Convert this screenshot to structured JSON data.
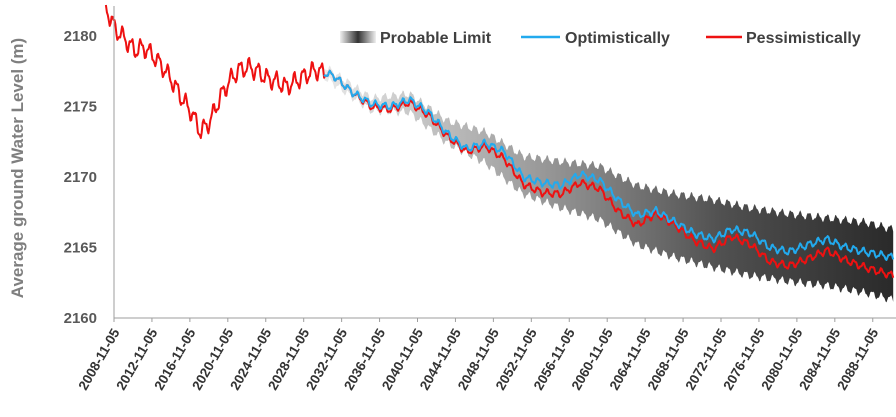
{
  "chart_data": {
    "type": "line",
    "ylabel": "Average ground Water Level (m)",
    "xlabel": "",
    "ylim": [
      2160,
      2182
    ],
    "y_ticks": [
      2160,
      2165,
      2170,
      2175,
      2180
    ],
    "x_ticks": [
      "2008-11-05",
      "2012-11-05",
      "2016-11-05",
      "2020-11-05",
      "2024-11-05",
      "2028-11-05",
      "2032-11-05",
      "2036-11-05",
      "2040-11-05",
      "2044-11-05",
      "2048-11-05",
      "2052-11-05",
      "2056-11-05",
      "2060-11-05",
      "2064-11-05",
      "2068-11-05",
      "2072-11-05",
      "2076-11-05",
      "2080-11-05",
      "2084-11-05",
      "2088-11-05"
    ],
    "grid": false,
    "legend_position": "top-right",
    "historical_end_year": 2031,
    "series": [
      {
        "name": "Probable Limit",
        "kind": "band",
        "color": "#404040",
        "x": [
          2031,
          2036,
          2040,
          2044,
          2048,
          2052,
          2056,
          2060,
          2064,
          2068,
          2072,
          2076,
          2080,
          2084,
          2088,
          2091
        ],
        "lower": [
          2177.1,
          2174.7,
          2174.6,
          2172.4,
          2171.0,
          2168.8,
          2167.8,
          2167.0,
          2165.2,
          2164.3,
          2163.6,
          2163.0,
          2162.6,
          2162.3,
          2161.8,
          2161.3
        ],
        "upper": [
          2177.9,
          2175.6,
          2175.9,
          2174.0,
          2173.2,
          2171.5,
          2171.1,
          2170.8,
          2169.4,
          2168.8,
          2168.4,
          2167.8,
          2167.4,
          2167.1,
          2166.8,
          2166.3
        ]
      },
      {
        "name": "Optimistically",
        "kind": "line",
        "color": "#22aaee",
        "x": [
          2031,
          2032,
          2034,
          2036,
          2038,
          2040,
          2042,
          2044,
          2046,
          2048,
          2050,
          2052,
          2054,
          2056,
          2058,
          2060,
          2062,
          2064,
          2066,
          2068,
          2070,
          2072,
          2074,
          2076,
          2078,
          2080,
          2082,
          2084,
          2086,
          2088,
          2091
        ],
        "values": [
          2177.4,
          2177.2,
          2176.0,
          2175.2,
          2175.0,
          2175.5,
          2174.6,
          2173.1,
          2172.0,
          2172.4,
          2171.8,
          2170.0,
          2169.6,
          2169.4,
          2170.2,
          2169.8,
          2168.4,
          2167.3,
          2167.6,
          2166.8,
          2166.0,
          2165.6,
          2166.3,
          2166.0,
          2165.0,
          2164.7,
          2165.2,
          2165.6,
          2165.0,
          2164.7,
          2164.3
        ]
      },
      {
        "name": "Pessimistically",
        "kind": "line",
        "color": "#ee1111",
        "x": [
          2008,
          2009,
          2010,
          2011,
          2012,
          2013,
          2014,
          2015,
          2016,
          2017,
          2018,
          2019,
          2020,
          2021,
          2022,
          2023,
          2024,
          2025,
          2026,
          2027,
          2028,
          2029,
          2030,
          2031,
          2032,
          2034,
          2036,
          2038,
          2040,
          2042,
          2044,
          2046,
          2048,
          2050,
          2052,
          2054,
          2056,
          2058,
          2060,
          2062,
          2064,
          2066,
          2068,
          2070,
          2072,
          2074,
          2076,
          2078,
          2080,
          2082,
          2084,
          2086,
          2088,
          2091
        ],
        "values": [
          2182.0,
          2180.5,
          2179.8,
          2179.0,
          2179.2,
          2178.6,
          2177.8,
          2176.8,
          2175.6,
          2174.6,
          2173.2,
          2174.0,
          2175.6,
          2176.8,
          2177.6,
          2177.8,
          2177.5,
          2177.0,
          2176.8,
          2176.4,
          2176.8,
          2177.2,
          2177.6,
          2177.4,
          2177.2,
          2176.0,
          2175.0,
          2174.8,
          2175.3,
          2174.4,
          2172.9,
          2171.8,
          2172.2,
          2171.3,
          2169.5,
          2168.9,
          2168.8,
          2169.6,
          2169.2,
          2167.6,
          2166.6,
          2167.4,
          2166.6,
          2165.5,
          2164.9,
          2165.8,
          2165.2,
          2164.0,
          2163.7,
          2164.2,
          2164.8,
          2164.1,
          2163.6,
          2163.0
        ]
      }
    ]
  }
}
